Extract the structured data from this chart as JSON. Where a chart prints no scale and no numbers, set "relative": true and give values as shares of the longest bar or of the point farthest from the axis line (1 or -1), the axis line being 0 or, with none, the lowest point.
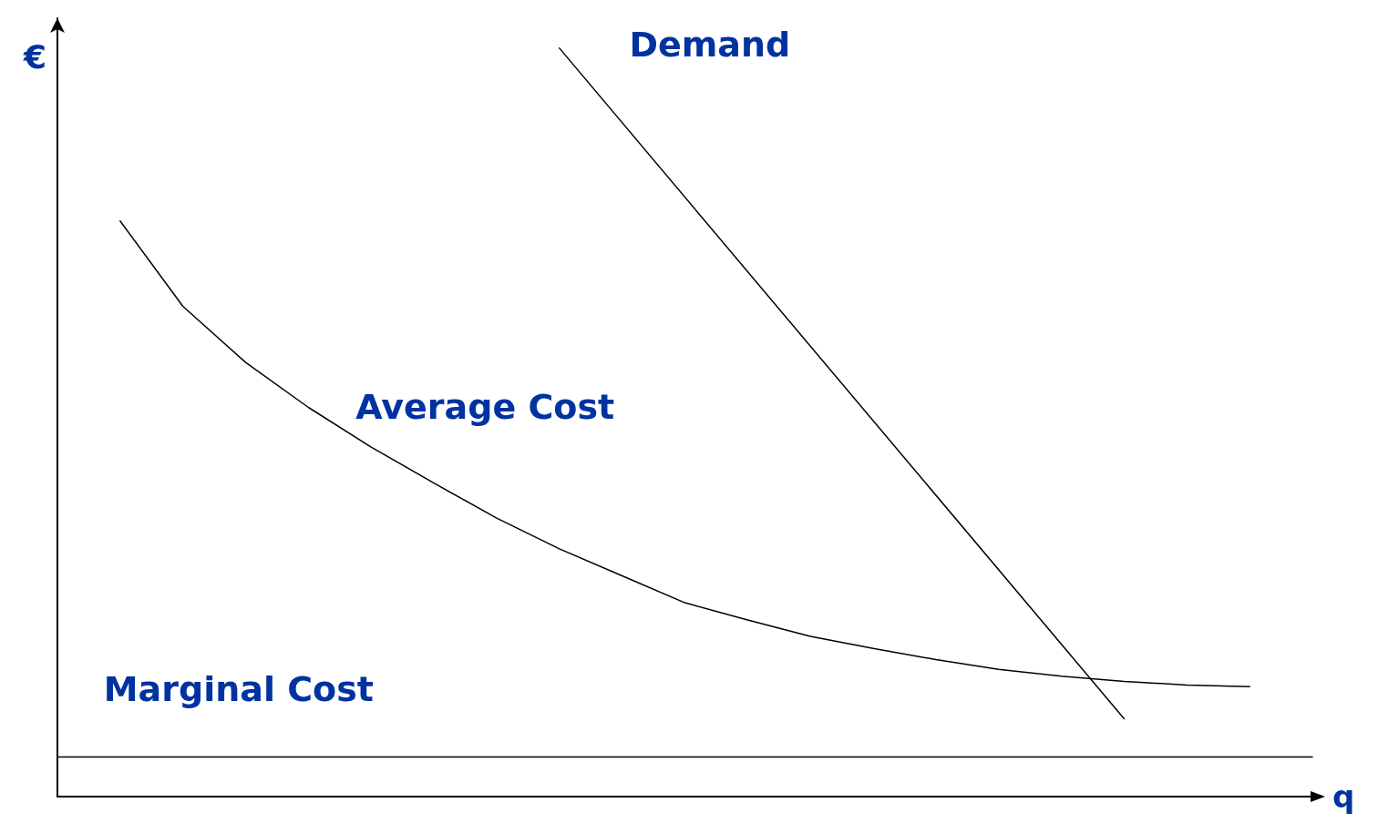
{
  "chart_data": {
    "type": "line",
    "relative": true,
    "xlabel": "q",
    "ylabel": "€",
    "grid": false,
    "legend": false,
    "marker": "none",
    "line_style": "solid",
    "categories": [
      null,
      null,
      null,
      null,
      null,
      null,
      null,
      null,
      null,
      null,
      null,
      null,
      null,
      null,
      null,
      null,
      null,
      null,
      null,
      null,
      null
    ],
    "series": [
      {
        "name": "Demand",
        "color": "#000000",
        "values": [
          null,
          null,
          null,
          null,
          null,
          null,
          null,
          null,
          1,
          null,
          null,
          null,
          null,
          null,
          null,
          null,
          null,
          0.104,
          null,
          null,
          null
        ]
      },
      {
        "name": "Average Cost",
        "color": "#000000",
        "values": [
          null,
          0.769,
          0.655,
          0.58,
          0.52,
          0.467,
          0.419,
          0.372,
          0.331,
          0.295,
          0.259,
          0.236,
          0.214,
          0.198,
          0.183,
          0.17,
          0.161,
          0.154,
          0.149,
          0.147,
          null
        ]
      },
      {
        "name": "Marginal Cost",
        "color": "#000000",
        "values": [
          0.053,
          0.053,
          0.053,
          0.053,
          0.053,
          0.053,
          0.053,
          0.053,
          0.053,
          0.053,
          0.053,
          0.053,
          0.053,
          0.053,
          0.053,
          0.053,
          0.053,
          0.053,
          0.053,
          0.053,
          0.053
        ]
      }
    ]
  }
}
